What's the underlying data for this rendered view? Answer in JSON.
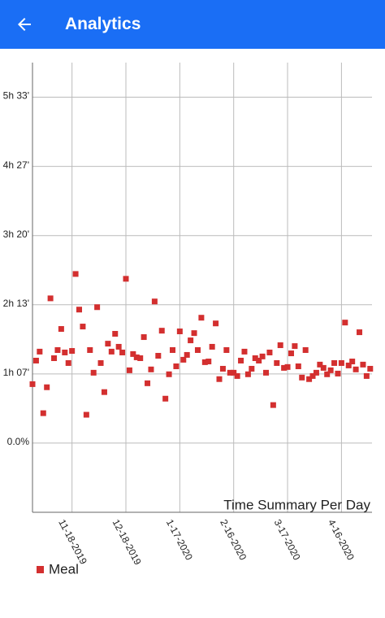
{
  "header": {
    "title": "Analytics"
  },
  "chart_data": {
    "type": "scatter",
    "title": "Time Summary Per Day",
    "x": [
      "2019-10-27",
      "2019-10-29",
      "2019-10-31",
      "2019-11-02",
      "2019-11-04",
      "2019-11-06",
      "2019-11-08",
      "2019-11-10",
      "2019-11-12",
      "2019-11-14",
      "2019-11-16",
      "2019-11-18",
      "2019-11-20",
      "2019-11-22",
      "2019-11-24",
      "2019-11-26",
      "2019-11-28",
      "2019-11-30",
      "2019-12-02",
      "2019-12-04",
      "2019-12-06",
      "2019-12-08",
      "2019-12-10",
      "2019-12-12",
      "2019-12-14",
      "2019-12-16",
      "2019-12-18",
      "2019-12-20",
      "2019-12-22",
      "2019-12-24",
      "2019-12-26",
      "2019-12-28",
      "2019-12-30",
      "2020-01-01",
      "2020-01-03",
      "2020-01-05",
      "2020-01-07",
      "2020-01-09",
      "2020-01-11",
      "2020-01-13",
      "2020-01-15",
      "2020-01-17",
      "2020-01-19",
      "2020-01-21",
      "2020-01-23",
      "2020-01-25",
      "2020-01-27",
      "2020-01-29",
      "2020-01-31",
      "2020-02-02",
      "2020-02-04",
      "2020-02-06",
      "2020-02-08",
      "2020-02-10",
      "2020-02-12",
      "2020-02-14",
      "2020-02-16",
      "2020-02-18",
      "2020-02-20",
      "2020-02-22",
      "2020-02-24",
      "2020-02-26",
      "2020-02-28",
      "2020-03-01",
      "2020-03-03",
      "2020-03-05",
      "2020-03-07",
      "2020-03-09",
      "2020-03-11",
      "2020-03-13",
      "2020-03-15",
      "2020-03-17",
      "2020-03-19",
      "2020-03-21",
      "2020-03-23",
      "2020-03-25",
      "2020-03-27",
      "2020-03-29",
      "2020-03-31",
      "2020-04-02",
      "2020-04-04",
      "2020-04-06",
      "2020-04-08",
      "2020-04-10",
      "2020-04-12",
      "2020-04-14",
      "2020-04-16",
      "2020-04-18",
      "2020-04-20",
      "2020-04-22",
      "2020-04-24",
      "2020-04-26",
      "2020-04-28",
      "2020-04-30",
      "2020-05-02"
    ],
    "series": [
      {
        "name": "Meal",
        "color": "#d32f2f",
        "values": [
          3410,
          4770,
          5290,
          1730,
          3230,
          8370,
          4910,
          5380,
          6600,
          5240,
          4630,
          5330,
          9780,
          7720,
          6740,
          1640,
          5380,
          4070,
          7860,
          4630,
          2950,
          5750,
          5290,
          6320,
          5570,
          5240,
          9500,
          4210,
          5150,
          4960,
          4910,
          6130,
          3460,
          4260,
          8190,
          5050,
          6500,
          2570,
          3980,
          5380,
          4440,
          6460,
          4820,
          5100,
          5940,
          6360,
          5380,
          7250,
          4680,
          4720,
          5570,
          6920,
          3700,
          4300,
          5380,
          4070,
          4070,
          3880,
          4770,
          5290,
          3980,
          4300,
          4910,
          4770,
          5010,
          4070,
          5240,
          2200,
          4630,
          5660,
          4350,
          4400,
          5190,
          5610,
          4440,
          3790,
          5380,
          3700,
          3880,
          4070,
          4540,
          4350,
          3980,
          4210,
          4630,
          4020,
          4630,
          6970,
          4490,
          4720,
          4260,
          6410,
          4540,
          3880,
          4300
        ]
      }
    ],
    "xlim": [
      "2019-10-27",
      "2020-05-03"
    ],
    "xticks": [
      {
        "value": "2019-11-18",
        "label": "11-18-2019"
      },
      {
        "value": "2019-12-18",
        "label": "12-18-2019"
      },
      {
        "value": "2020-01-17",
        "label": "1-17-2020"
      },
      {
        "value": "2020-02-16",
        "label": "2-16-2020"
      },
      {
        "value": "2020-03-17",
        "label": "3-17-2020"
      },
      {
        "value": "2020-04-16",
        "label": "4-16-2020"
      }
    ],
    "ylim": [
      -4000,
      22000
    ],
    "yticks": [
      {
        "value": 0,
        "label": "0.0%"
      },
      {
        "value": 4000,
        "label": "1h 07'"
      },
      {
        "value": 8000,
        "label": "2h 13'"
      },
      {
        "value": 12000,
        "label": "3h 20'"
      },
      {
        "value": 16000,
        "label": "4h 27'"
      },
      {
        "value": 20000,
        "label": "5h 33'"
      }
    ],
    "grid": true
  }
}
